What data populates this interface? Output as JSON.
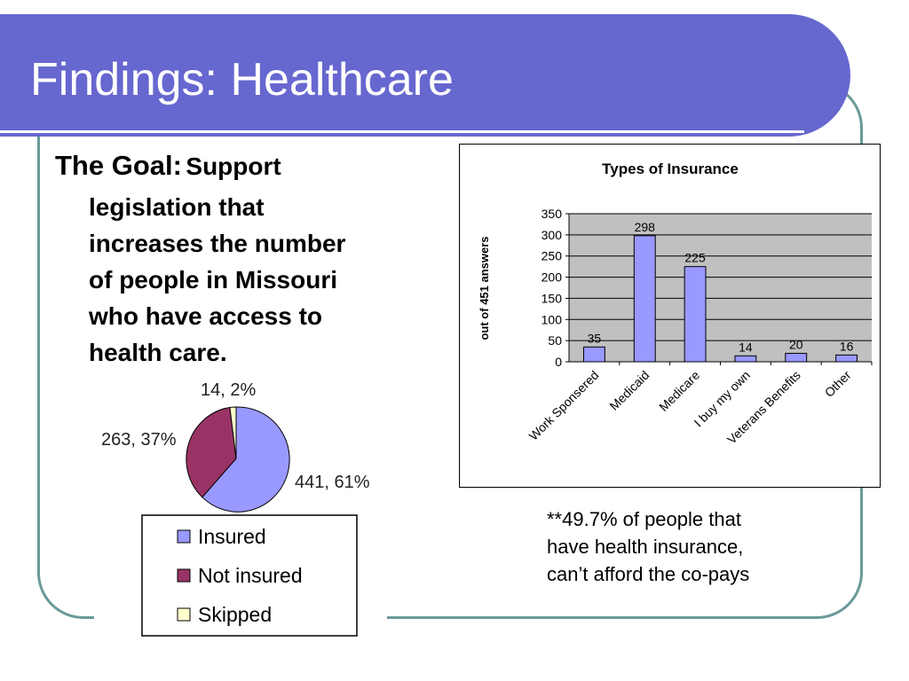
{
  "slide": {
    "title": "Findings: Healthcare",
    "goal_lead": "The Goal:",
    "goal_first": "Support",
    "goal_lines": [
      "legislation that",
      "increases the number",
      "of people in Missouri",
      "who have access to",
      "health care."
    ],
    "note_lines": [
      "**49.7% of people that",
      "have health insurance,",
      "can’t afford the co-pays"
    ],
    "colors": {
      "title_bar": "#6767d0",
      "frame": "#6a9a9a",
      "bar": "#9999ff",
      "plot_bg": "#c0c0c0"
    }
  },
  "chart_data": [
    {
      "type": "pie",
      "categories": [
        "Insured",
        "Not insured",
        "Skipped"
      ],
      "values": [
        441,
        263,
        14
      ],
      "labels": [
        "441, 61%",
        "263, 37%",
        "14, 2%"
      ],
      "colors": [
        "#9999ff",
        "#993366",
        "#ffffcc"
      ],
      "legend": "bottom"
    },
    {
      "type": "bar",
      "title": "Types of Insurance",
      "ylabel": "out of 451 answers",
      "xlabel": "",
      "categories": [
        "Work Sponsered",
        "Medicaid",
        "Medicare",
        "I buy my own",
        "Veterans Benefits",
        "Other"
      ],
      "values": [
        35,
        298,
        225,
        14,
        20,
        16
      ],
      "ylim": [
        0,
        350
      ],
      "yticks": [
        0,
        50,
        100,
        150,
        200,
        250,
        300,
        350
      ],
      "grid": true,
      "legend": "none"
    }
  ]
}
